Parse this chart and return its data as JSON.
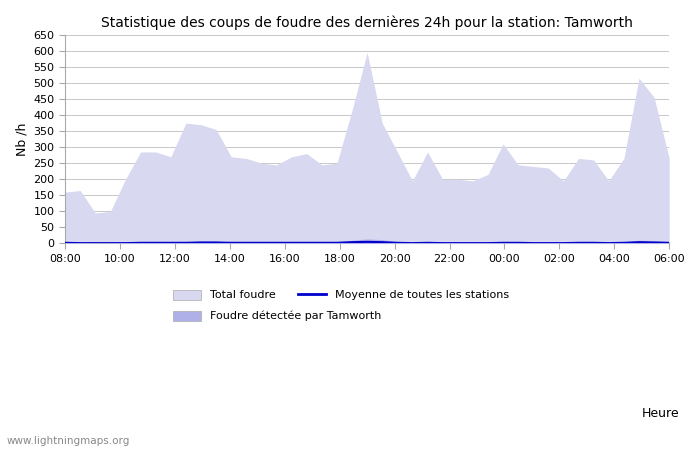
{
  "title": "Statistique des coups de foudre des dernières 24h pour la station: Tamworth",
  "ylabel": "Nb /h",
  "xlabel": "Heure",
  "ylim": [
    0,
    650
  ],
  "yticks": [
    0,
    50,
    100,
    150,
    200,
    250,
    300,
    350,
    400,
    450,
    500,
    550,
    600,
    650
  ],
  "xtick_labels": [
    "08:00",
    "10:00",
    "12:00",
    "14:00",
    "16:00",
    "18:00",
    "20:00",
    "22:00",
    "00:00",
    "02:00",
    "04:00",
    "06:00"
  ],
  "background_color": "#ffffff",
  "grid_color": "#c8c8c8",
  "fill_color_total": "#d8d8f0",
  "fill_color_station": "#b0b0e8",
  "line_color_avg": "#0000cc",
  "watermark": "www.lightningmaps.org",
  "total_foudre": [
    160,
    165,
    95,
    100,
    200,
    285,
    285,
    270,
    375,
    370,
    355,
    270,
    265,
    250,
    245,
    270,
    280,
    245,
    250,
    415,
    595,
    375,
    285,
    195,
    285,
    200,
    200,
    195,
    215,
    310,
    245,
    240,
    235,
    195,
    265,
    260,
    195,
    265,
    515,
    455,
    265
  ],
  "station_foudre": [
    5,
    3,
    2,
    2,
    3,
    5,
    5,
    4,
    6,
    8,
    7,
    5,
    5,
    5,
    4,
    5,
    5,
    5,
    5,
    10,
    14,
    12,
    5,
    3,
    5,
    3,
    3,
    3,
    4,
    6,
    4,
    4,
    4,
    3,
    5,
    5,
    3,
    5,
    10,
    9,
    5
  ],
  "avg_foudre": [
    2,
    1,
    1,
    1,
    1,
    2,
    2,
    2,
    2,
    3,
    3,
    2,
    2,
    2,
    2,
    2,
    2,
    2,
    2,
    4,
    5,
    4,
    2,
    1,
    2,
    1,
    1,
    1,
    1,
    2,
    2,
    1,
    1,
    1,
    2,
    2,
    1,
    2,
    4,
    3,
    2
  ]
}
